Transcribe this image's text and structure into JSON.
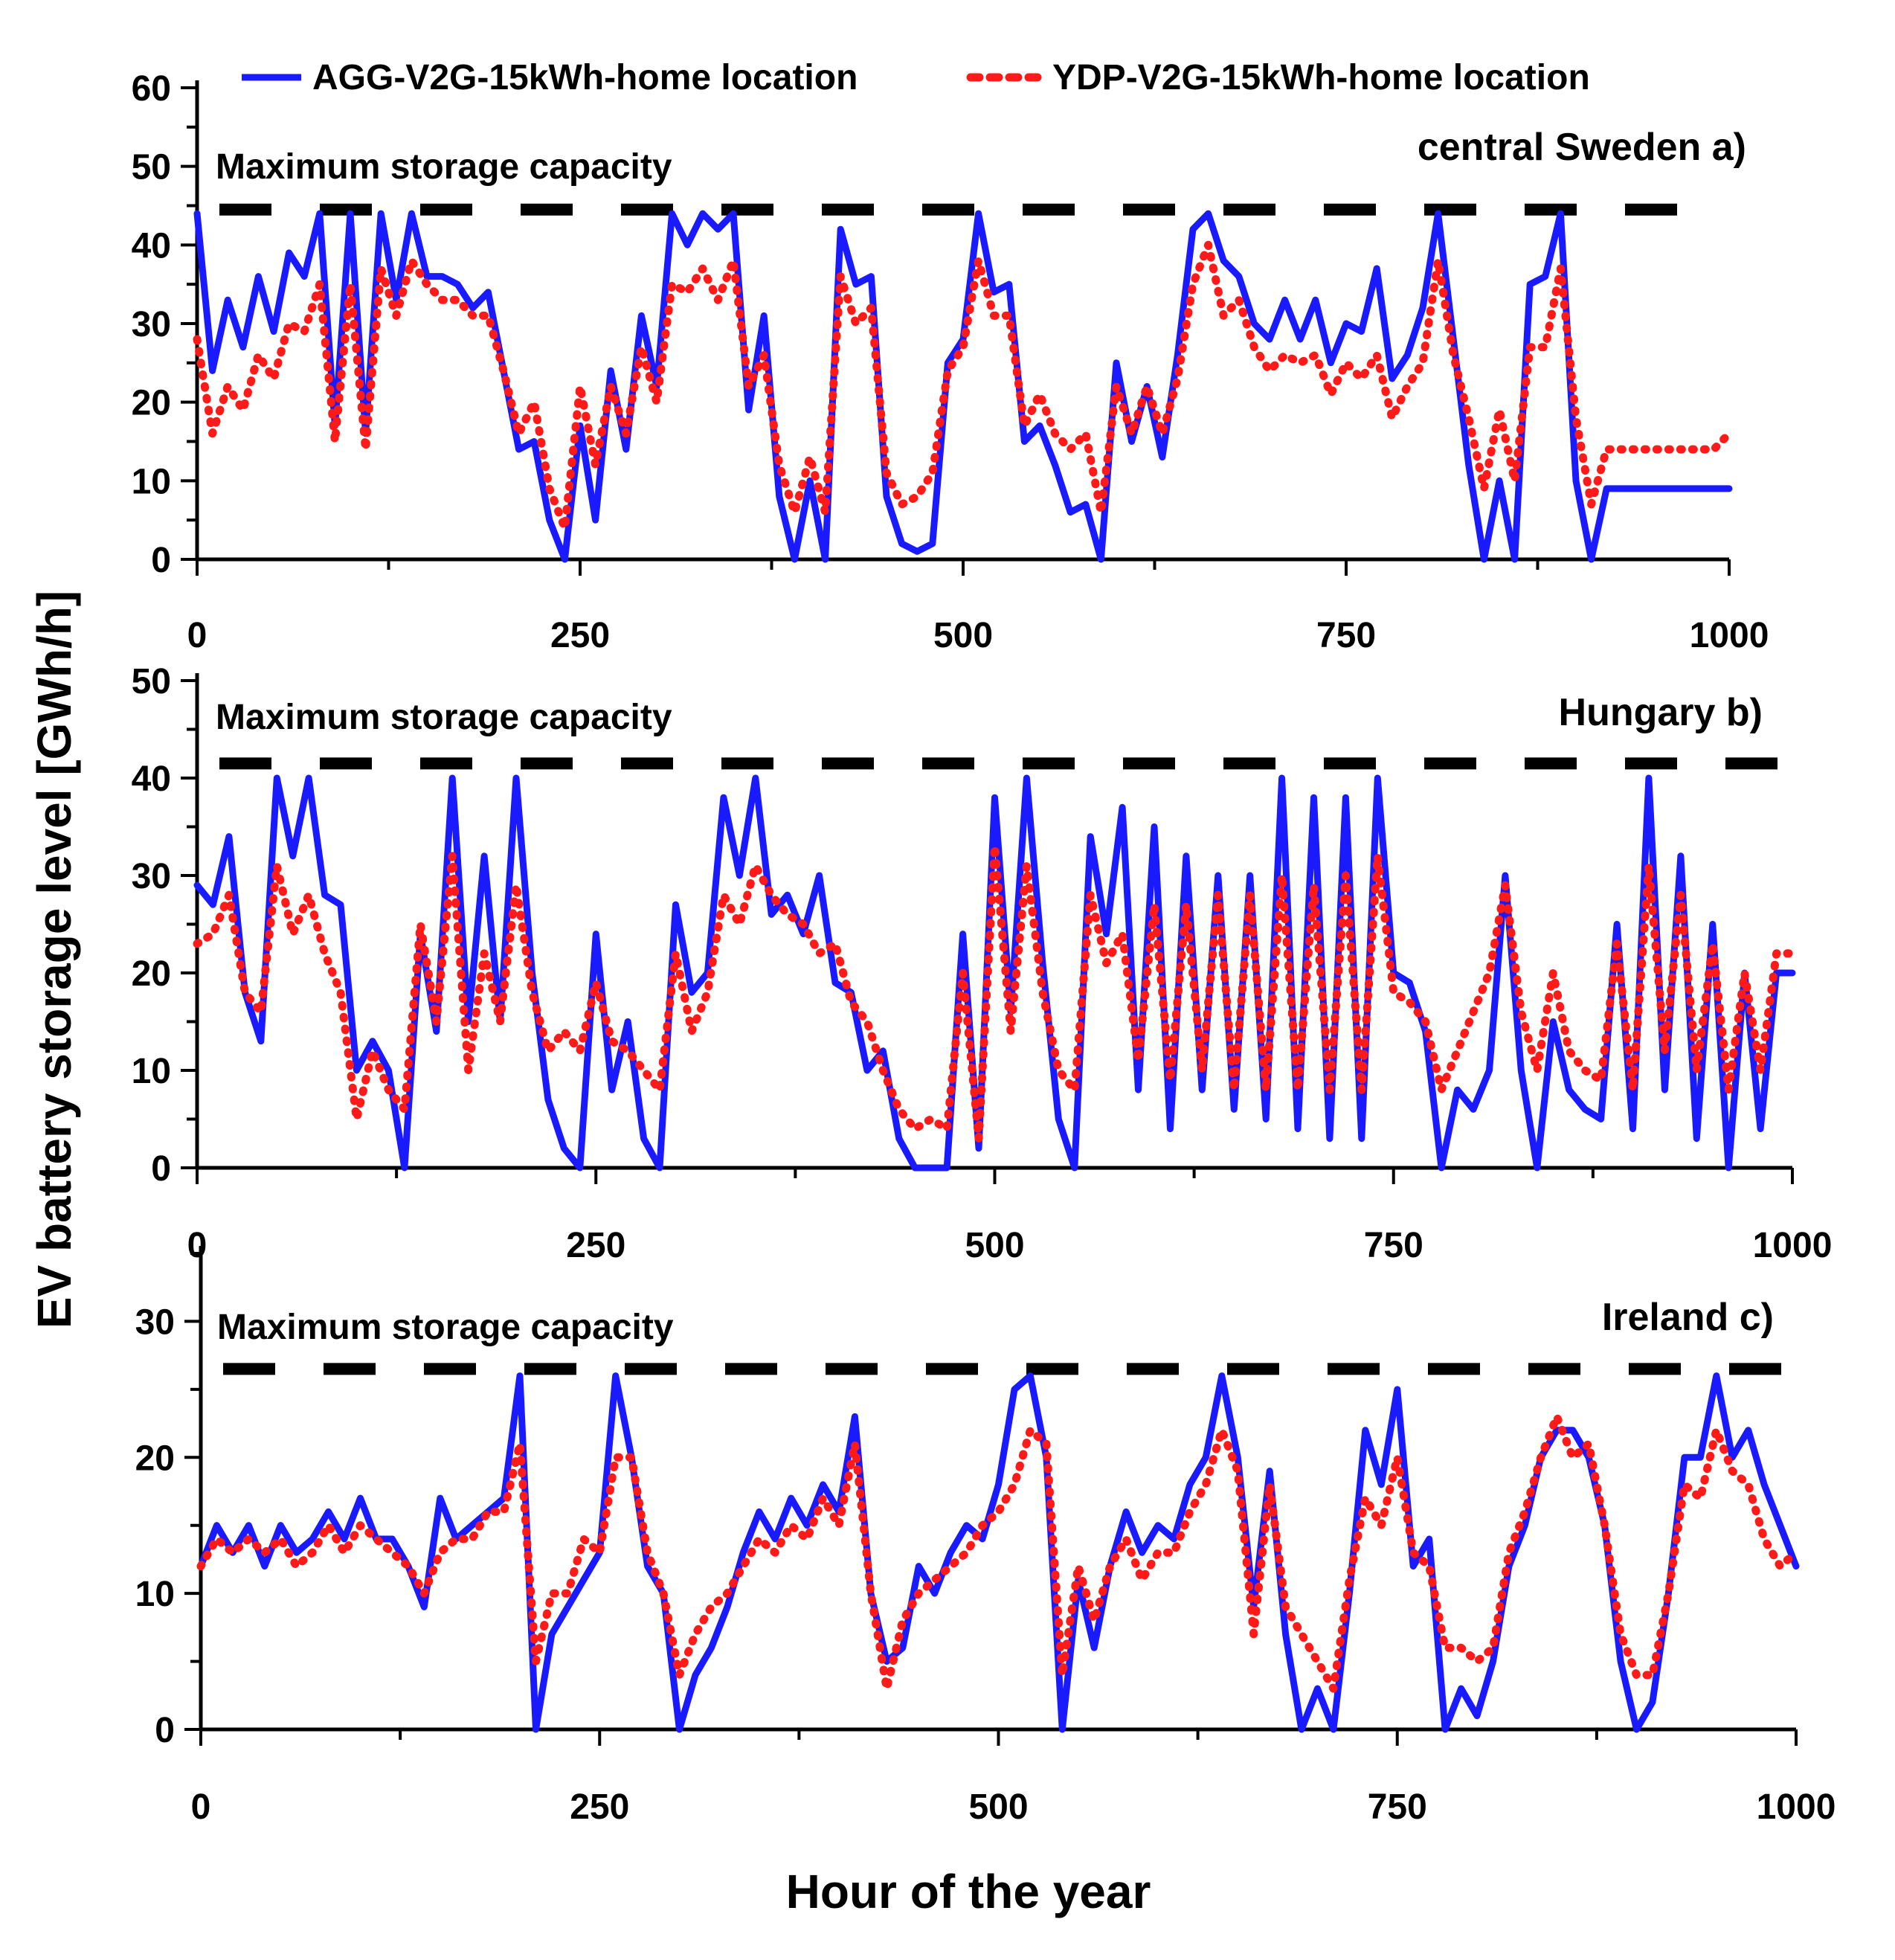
{
  "figure": {
    "ylabel": "EV battery storage level [GWh/h]",
    "xlabel": "Hour of the year",
    "legend": [
      {
        "label": "AGG-V2G-15kWh-home location",
        "color": "#1a1aff",
        "style": "solid"
      },
      {
        "label": "YDP-V2G-15kWh-home location",
        "color": "#ff1a1a",
        "style": "dotted"
      }
    ],
    "capacity_color": "#000000"
  },
  "chart_data": [
    {
      "type": "line",
      "panel_label": "central Sweden a)",
      "annotation": "Maximum storage capacity",
      "capacity": 44.5,
      "xlim": [
        0,
        1000
      ],
      "ylim": [
        0,
        60
      ],
      "xticks": [
        "0",
        "250",
        "500",
        "750",
        "1000"
      ],
      "yticks": [
        "0",
        "10",
        "20",
        "30",
        "40",
        "50",
        "60"
      ],
      "x": [
        0,
        10,
        20,
        30,
        40,
        50,
        60,
        70,
        80,
        90,
        100,
        110,
        120,
        130,
        140,
        150,
        160,
        170,
        180,
        190,
        200,
        210,
        220,
        230,
        240,
        250,
        260,
        270,
        280,
        290,
        300,
        310,
        320,
        330,
        340,
        350,
        360,
        370,
        380,
        390,
        400,
        410,
        420,
        430,
        440,
        450,
        460,
        470,
        480,
        490,
        500,
        510,
        520,
        530,
        540,
        550,
        560,
        570,
        580,
        590,
        600,
        610,
        620,
        630,
        640,
        650,
        660,
        670,
        680,
        690,
        700,
        710,
        720,
        730,
        740,
        750,
        760,
        770,
        780,
        790,
        800,
        810,
        820,
        830,
        840,
        850,
        860,
        870,
        880,
        890,
        900,
        910,
        920,
        930,
        940,
        950,
        960,
        970,
        980,
        990,
        1000
      ],
      "series": [
        {
          "name": "AGG-V2G-15kWh-home location",
          "values": [
            44,
            24,
            33,
            27,
            36,
            29,
            39,
            36,
            44,
            17,
            44,
            16,
            44,
            33,
            44,
            36,
            36,
            35,
            32,
            34,
            24,
            14,
            15,
            5,
            0,
            17,
            5,
            24,
            14,
            31,
            22,
            44,
            40,
            44,
            42,
            44,
            19,
            31,
            8,
            0,
            10,
            0,
            42,
            35,
            36,
            8,
            2,
            1,
            2,
            25,
            28,
            44,
            34,
            35,
            15,
            17,
            12,
            6,
            7,
            0,
            25,
            15,
            22,
            13,
            26,
            42,
            44,
            38,
            36,
            30,
            28,
            33,
            28,
            33,
            25,
            30,
            29,
            37,
            23,
            26,
            32,
            44,
            28,
            12,
            0,
            10,
            0,
            35,
            36,
            44,
            10,
            0,
            9,
            9,
            9,
            9,
            9,
            9,
            9,
            9,
            9
          ]
        },
        {
          "name": "YDP-V2G-15kWh-home location",
          "values": [
            28,
            16,
            22,
            19,
            26,
            23,
            30,
            29,
            35,
            15,
            35,
            14,
            37,
            31,
            38,
            35,
            33,
            33,
            31,
            31,
            24,
            16,
            20,
            9,
            4,
            22,
            12,
            22,
            16,
            27,
            20,
            35,
            34,
            37,
            33,
            38,
            22,
            26,
            12,
            6,
            13,
            6,
            36,
            30,
            32,
            11,
            7,
            8,
            11,
            24,
            27,
            38,
            31,
            31,
            17,
            21,
            16,
            14,
            16,
            6,
            22,
            16,
            22,
            16,
            23,
            35,
            40,
            31,
            33,
            27,
            24,
            26,
            25,
            26,
            21,
            25,
            23,
            26,
            18,
            22,
            25,
            38,
            26,
            18,
            9,
            19,
            10,
            27,
            27,
            37,
            18,
            7,
            14,
            14,
            14,
            14,
            14,
            14,
            14,
            14,
            16
          ]
        }
      ]
    },
    {
      "type": "line",
      "panel_label": "Hungary b)",
      "annotation": "Maximum storage capacity",
      "capacity": 41.5,
      "xlim": [
        0,
        1000
      ],
      "ylim": [
        0,
        50
      ],
      "xticks": [
        "0",
        "250",
        "500",
        "750",
        "1000"
      ],
      "yticks": [
        "0",
        "10",
        "20",
        "30",
        "40",
        "50"
      ],
      "x": [
        0,
        10,
        20,
        30,
        40,
        50,
        60,
        70,
        80,
        90,
        100,
        110,
        120,
        130,
        140,
        150,
        160,
        170,
        180,
        190,
        200,
        210,
        220,
        230,
        240,
        250,
        260,
        270,
        280,
        290,
        300,
        310,
        320,
        330,
        340,
        350,
        360,
        370,
        380,
        390,
        400,
        410,
        420,
        430,
        440,
        450,
        460,
        470,
        480,
        490,
        500,
        510,
        520,
        530,
        540,
        550,
        560,
        570,
        580,
        590,
        600,
        610,
        620,
        630,
        640,
        650,
        660,
        670,
        680,
        690,
        700,
        710,
        720,
        730,
        740,
        750,
        760,
        770,
        780,
        790,
        800,
        810,
        820,
        830,
        840,
        850,
        860,
        870,
        880,
        890,
        900,
        910,
        920,
        930,
        940,
        950,
        960,
        970,
        980,
        990,
        1000
      ],
      "series": [
        {
          "name": "AGG-V2G-15kWh-home location",
          "values": [
            29,
            27,
            34,
            18,
            13,
            40,
            32,
            40,
            28,
            27,
            10,
            13,
            10,
            0,
            24,
            14,
            40,
            15,
            32,
            15,
            40,
            20,
            7,
            2,
            0,
            24,
            8,
            15,
            3,
            0,
            27,
            18,
            20,
            38,
            30,
            40,
            26,
            28,
            24,
            30,
            19,
            18,
            10,
            12,
            3,
            0,
            0,
            0,
            24,
            2,
            38,
            16,
            40,
            21,
            5,
            0,
            34,
            24,
            37,
            8,
            35,
            4,
            32,
            8,
            30,
            6,
            30,
            5,
            40,
            4,
            38,
            3,
            38,
            3,
            40,
            20,
            19,
            14,
            0,
            8,
            6,
            10,
            30,
            10,
            0,
            15,
            8,
            6,
            5,
            25,
            4,
            40,
            8,
            32,
            3,
            25,
            0,
            20,
            4,
            20,
            20
          ]
        },
        {
          "name": "YDP-V2G-15kWh-home location",
          "values": [
            23,
            24,
            28,
            18,
            16,
            31,
            24,
            28,
            22,
            18,
            5,
            12,
            8,
            6,
            25,
            15,
            32,
            10,
            22,
            15,
            29,
            18,
            12,
            14,
            12,
            19,
            13,
            12,
            10,
            8,
            22,
            14,
            18,
            28,
            25,
            31,
            28,
            26,
            25,
            22,
            23,
            17,
            15,
            10,
            6,
            4,
            5,
            4,
            20,
            3,
            33,
            14,
            31,
            18,
            10,
            8,
            28,
            21,
            24,
            11,
            27,
            9,
            27,
            10,
            28,
            8,
            28,
            8,
            30,
            8,
            29,
            8,
            30,
            8,
            32,
            18,
            17,
            15,
            8,
            12,
            16,
            20,
            29,
            16,
            10,
            20,
            12,
            10,
            9,
            23,
            8,
            31,
            12,
            28,
            10,
            23,
            8,
            20,
            10,
            22,
            22
          ]
        }
      ]
    },
    {
      "type": "line",
      "panel_label": "Ireland c)",
      "annotation": "Maximum storage capacity",
      "capacity": 26.5,
      "xlim": [
        0,
        1000
      ],
      "ylim": [
        0,
        35
      ],
      "xticks": [
        "0",
        "250",
        "500",
        "750",
        "1000"
      ],
      "yticks": [
        "0",
        "10",
        "20",
        "30"
      ],
      "x": [
        0,
        10,
        20,
        30,
        40,
        50,
        60,
        70,
        80,
        90,
        100,
        110,
        120,
        130,
        140,
        150,
        160,
        170,
        180,
        190,
        200,
        210,
        220,
        230,
        240,
        250,
        260,
        270,
        280,
        290,
        300,
        310,
        320,
        330,
        340,
        350,
        360,
        370,
        380,
        390,
        400,
        410,
        420,
        430,
        440,
        450,
        460,
        470,
        480,
        490,
        500,
        510,
        520,
        530,
        540,
        550,
        560,
        570,
        580,
        590,
        600,
        610,
        620,
        630,
        640,
        650,
        660,
        670,
        680,
        690,
        700,
        710,
        720,
        730,
        740,
        750,
        760,
        770,
        780,
        790,
        800,
        810,
        820,
        830,
        840,
        850,
        860,
        870,
        880,
        890,
        900,
        910,
        920,
        930,
        940,
        950,
        960,
        970,
        980,
        990,
        1000
      ],
      "series": [
        {
          "name": "AGG-V2G-15kWh-home location",
          "values": [
            12,
            15,
            13,
            15,
            12,
            15,
            13,
            14,
            16,
            14,
            17,
            14,
            14,
            12,
            9,
            17,
            14,
            15,
            16,
            17,
            26,
            0,
            7,
            9,
            11,
            13,
            26,
            20,
            12,
            10,
            0,
            4,
            6,
            9,
            13,
            16,
            14,
            17,
            15,
            18,
            16,
            23,
            10,
            5,
            6,
            12,
            10,
            13,
            15,
            14,
            18,
            25,
            26,
            20,
            0,
            11,
            6,
            12,
            16,
            13,
            15,
            14,
            18,
            20,
            26,
            20,
            9,
            19,
            7,
            0,
            3,
            0,
            10,
            22,
            18,
            25,
            12,
            14,
            0,
            3,
            1,
            5,
            12,
            15,
            20,
            22,
            22,
            20,
            15,
            5,
            0,
            2,
            10,
            20,
            20,
            26,
            20,
            22,
            18,
            15,
            12
          ]
        },
        {
          "name": "YDP-V2G-15kWh-home location",
          "values": [
            12,
            14,
            13,
            14,
            13,
            14,
            12,
            13,
            15,
            13,
            15,
            14,
            13,
            12,
            10,
            13,
            14,
            14,
            16,
            16,
            21,
            5,
            10,
            10,
            14,
            13,
            20,
            20,
            13,
            10,
            4,
            7,
            9,
            10,
            12,
            14,
            13,
            15,
            14,
            17,
            15,
            21,
            10,
            3,
            8,
            10,
            11,
            12,
            13,
            15,
            16,
            18,
            22,
            21,
            4,
            12,
            8,
            12,
            14,
            11,
            13,
            13,
            16,
            18,
            22,
            19,
            7,
            18,
            9,
            7,
            5,
            3,
            11,
            17,
            15,
            20,
            13,
            12,
            6,
            6,
            5,
            6,
            13,
            16,
            20,
            23,
            20,
            21,
            15,
            7,
            4,
            4,
            10,
            18,
            17,
            22,
            19,
            18,
            14,
            12,
            13
          ]
        }
      ]
    }
  ]
}
